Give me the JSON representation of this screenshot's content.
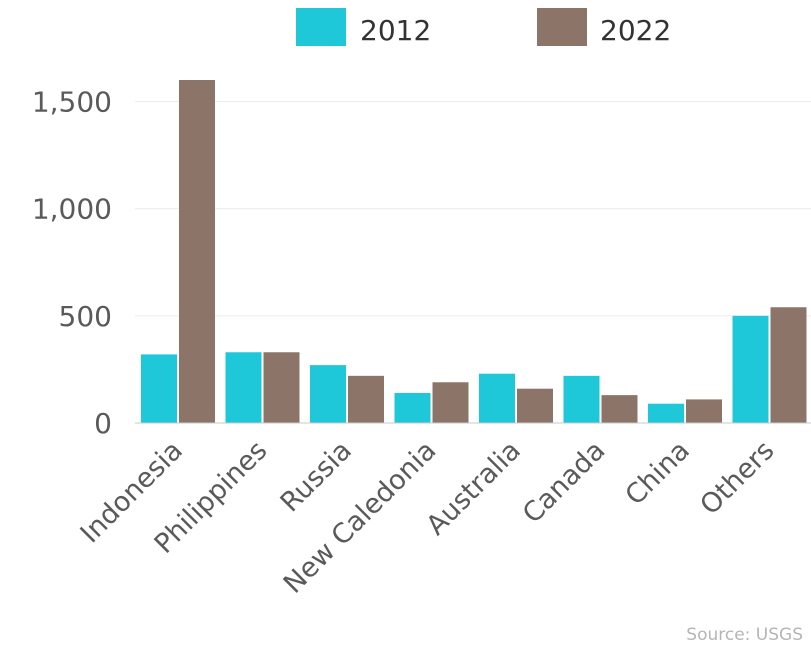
{
  "chart_data": {
    "type": "bar",
    "categories": [
      "Indonesia",
      "Philippines",
      "Russia",
      "New Caledonia",
      "Australia",
      "Canada",
      "China",
      "Others"
    ],
    "series": [
      {
        "name": "2012",
        "color": "#1ec8d8",
        "values": [
          320,
          330,
          270,
          140,
          230,
          220,
          90,
          500
        ]
      },
      {
        "name": "2022",
        "color": "#8c7568",
        "values": [
          1600,
          330,
          220,
          190,
          160,
          130,
          110,
          540
        ]
      }
    ],
    "ylim": [
      0,
      1600
    ],
    "yticks": [
      0,
      500,
      1000,
      1500
    ],
    "ytick_labels": [
      "0",
      "500",
      "1,000",
      "1,500"
    ],
    "grid": true,
    "legend_position": "top",
    "source": "Source: USGS"
  }
}
